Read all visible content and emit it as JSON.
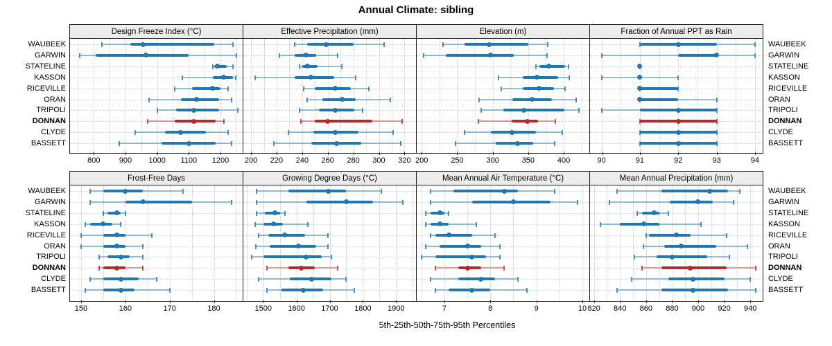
{
  "title": "Annual Climate: sibling",
  "caption": "5th-25th-50th-75th-95th Percentiles",
  "percentile_levels": [
    "5th",
    "25th",
    "50th",
    "75th",
    "95th"
  ],
  "stations": [
    "WAUBEEK",
    "GARWIN",
    "STATELINE",
    "KASSON",
    "RICEVILLE",
    "ORAN",
    "TRIPOLI",
    "DONNAN",
    "CLYDE",
    "BASSETT"
  ],
  "highlight_station": "DONNAN",
  "colors": {
    "series_blue": "#1f77b4",
    "series_red": "#b42a2a",
    "strip_bg": "#ececec",
    "grid": "#c8c8c8",
    "frame": "#1a1a1a"
  },
  "chart_data": [
    {
      "type": "scatter",
      "subtype": "median-dot with 25-75 bar and 5-95 whisker",
      "title": "Design Freeze Index (°C)",
      "xlim": [
        725,
        1270
      ],
      "ticks": [
        800,
        900,
        1000,
        1100,
        1200
      ],
      "minor_step": 50,
      "values": [
        [
          825,
          915,
          955,
          1180,
          1240
        ],
        [
          755,
          805,
          965,
          1100,
          1250
        ],
        [
          1175,
          1180,
          1190,
          1220,
          1240
        ],
        [
          1080,
          1175,
          1210,
          1240,
          1248
        ],
        [
          1055,
          1110,
          1175,
          1200,
          1225
        ],
        [
          975,
          1075,
          1125,
          1195,
          1235
        ],
        [
          1000,
          1060,
          1115,
          1195,
          1255
        ],
        [
          970,
          1055,
          1115,
          1185,
          1210
        ],
        [
          930,
          1025,
          1075,
          1155,
          1225
        ],
        [
          880,
          1015,
          1100,
          1185,
          1235
        ]
      ]
    },
    {
      "type": "scatter",
      "subtype": "median-dot with 25-75 bar and 5-95 whisker",
      "title": "Effective Precipitation (mm)",
      "xlim": [
        194,
        329
      ],
      "ticks": [
        200,
        220,
        240,
        260,
        280,
        300,
        320
      ],
      "minor_step": 10,
      "values": [
        [
          234,
          244,
          259,
          280,
          304
        ],
        [
          222,
          234,
          243,
          251,
          268
        ],
        [
          238,
          240,
          244,
          252,
          271
        ],
        [
          203,
          234,
          247,
          265,
          282
        ],
        [
          241,
          250,
          266,
          278,
          292
        ],
        [
          244,
          256,
          271,
          282,
          309
        ],
        [
          238,
          253,
          266,
          281,
          287
        ],
        [
          239,
          250,
          260,
          295,
          318
        ],
        [
          229,
          249,
          266,
          284,
          311
        ],
        [
          218,
          247,
          267,
          286,
          317
        ]
      ]
    },
    {
      "type": "scatter",
      "subtype": "median-dot with 25-75 bar and 5-95 whisker",
      "title": "Elevation (m)",
      "xlim": [
        193,
        436
      ],
      "ticks": [
        200,
        250,
        300,
        350,
        400
      ],
      "minor_step": 25,
      "values": [
        [
          230,
          260,
          295,
          350,
          377
        ],
        [
          203,
          234,
          297,
          330,
          376
        ],
        [
          361,
          366,
          379,
          402,
          407
        ],
        [
          308,
          342,
          362,
          392,
          408
        ],
        [
          312,
          342,
          365,
          386,
          402
        ],
        [
          281,
          328,
          355,
          383,
          417
        ],
        [
          284,
          315,
          344,
          401,
          421
        ],
        [
          280,
          327,
          349,
          364,
          388
        ],
        [
          260,
          297,
          327,
          361,
          398
        ],
        [
          248,
          304,
          335,
          357,
          387
        ]
      ]
    },
    {
      "type": "scatter",
      "subtype": "median-dot with 25-75 bar and 5-95 whisker",
      "title": "Fraction of Annual PPT as Rain",
      "xlim": [
        89.7,
        94.2
      ],
      "ticks": [
        90,
        91,
        92,
        93,
        94
      ],
      "minor_step": 0.5,
      "values": [
        [
          91,
          91,
          92,
          93,
          94
        ],
        [
          90,
          92,
          93,
          93,
          94
        ],
        [
          91,
          91,
          91,
          91,
          91
        ],
        [
          90,
          91,
          91,
          91,
          92
        ],
        [
          91,
          91,
          91,
          92,
          92
        ],
        [
          91,
          91,
          91,
          92,
          93
        ],
        [
          90,
          91,
          92,
          93,
          93
        ],
        [
          91,
          91,
          92,
          93,
          93
        ],
        [
          91,
          91,
          92,
          93,
          93
        ],
        [
          91,
          91,
          92,
          93,
          93
        ]
      ]
    },
    {
      "type": "scatter",
      "subtype": "median-dot with 25-75 bar and 5-95 whisker",
      "title": "Frost-Free Days",
      "xlim": [
        147.5,
        186.5
      ],
      "ticks": [
        150,
        160,
        170,
        180
      ],
      "minor_step": 5,
      "values": [
        [
          152,
          155,
          160,
          164,
          173
        ],
        [
          152,
          160,
          164,
          175,
          184
        ],
        [
          155,
          156,
          158,
          159,
          160
        ],
        [
          151,
          152,
          155,
          157,
          159
        ],
        [
          150,
          155,
          158,
          160,
          166
        ],
        [
          150,
          155,
          158,
          160,
          164
        ],
        [
          154,
          156,
          159,
          161,
          164
        ],
        [
          154,
          155,
          158,
          160,
          164
        ],
        [
          152,
          155,
          159,
          163,
          167
        ],
        [
          151,
          155,
          159,
          162,
          170
        ]
      ]
    },
    {
      "type": "scatter",
      "subtype": "median-dot with 25-75 bar and 5-95 whisker",
      "title": "Growing Degree Days (°C)",
      "xlim": [
        1440,
        1960
      ],
      "ticks": [
        1500,
        1600,
        1700,
        1800,
        1900
      ],
      "minor_step": 50,
      "values": [
        [
          1480,
          1575,
          1695,
          1750,
          1855
        ],
        [
          1480,
          1630,
          1750,
          1830,
          1920
        ],
        [
          1480,
          1505,
          1535,
          1550,
          1565
        ],
        [
          1475,
          1500,
          1530,
          1560,
          1635
        ],
        [
          1485,
          1515,
          1565,
          1625,
          1695
        ],
        [
          1478,
          1520,
          1605,
          1660,
          1695
        ],
        [
          1465,
          1500,
          1630,
          1675,
          1705
        ],
        [
          1510,
          1575,
          1615,
          1655,
          1725
        ],
        [
          1485,
          1580,
          1645,
          1705,
          1750
        ],
        [
          1510,
          1555,
          1620,
          1680,
          1775
        ]
      ]
    },
    {
      "type": "scatter",
      "subtype": "median-dot with 25-75 bar and 5-95 whisker",
      "title": "Mean Annual Air Temperature (°C)",
      "xlim": [
        6.4,
        10.15
      ],
      "ticks": [
        7,
        8,
        9,
        10
      ],
      "minor_step": 0.5,
      "values": [
        [
          6.7,
          7.2,
          8.3,
          8.6,
          9.4
        ],
        [
          6.7,
          7.6,
          8.5,
          9.3,
          9.9
        ],
        [
          6.6,
          6.7,
          6.9,
          7.0,
          7.1
        ],
        [
          6.6,
          6.7,
          6.9,
          7.1,
          7.7
        ],
        [
          6.7,
          6.8,
          7.1,
          7.6,
          8.1
        ],
        [
          6.6,
          6.9,
          7.5,
          7.8,
          8.2
        ],
        [
          6.5,
          6.8,
          7.6,
          7.9,
          8.2
        ],
        [
          6.8,
          7.3,
          7.5,
          7.8,
          8.3
        ],
        [
          6.7,
          7.3,
          7.8,
          8.1,
          8.6
        ],
        [
          6.8,
          7.1,
          7.6,
          8.0,
          8.8
        ]
      ]
    },
    {
      "type": "scatter",
      "subtype": "median-dot with 25-75 bar and 5-95 whisker",
      "title": "Mean Annual Precipitation (mm)",
      "xlim": [
        817,
        949.5
      ],
      "ticks": [
        820,
        840,
        860,
        880,
        900,
        920,
        940
      ],
      "minor_step": 10,
      "values": [
        [
          838,
          872,
          909,
          923,
          932
        ],
        [
          832,
          878,
          900,
          911,
          927
        ],
        [
          853,
          857,
          866,
          870,
          877
        ],
        [
          825,
          840,
          858,
          870,
          902
        ],
        [
          860,
          862,
          883,
          894,
          922
        ],
        [
          858,
          874,
          887,
          914,
          938
        ],
        [
          851,
          868,
          880,
          907,
          924
        ],
        [
          857,
          872,
          894,
          922,
          944
        ],
        [
          849,
          877,
          896,
          920,
          940
        ],
        [
          838,
          872,
          896,
          923,
          944
        ]
      ]
    }
  ]
}
